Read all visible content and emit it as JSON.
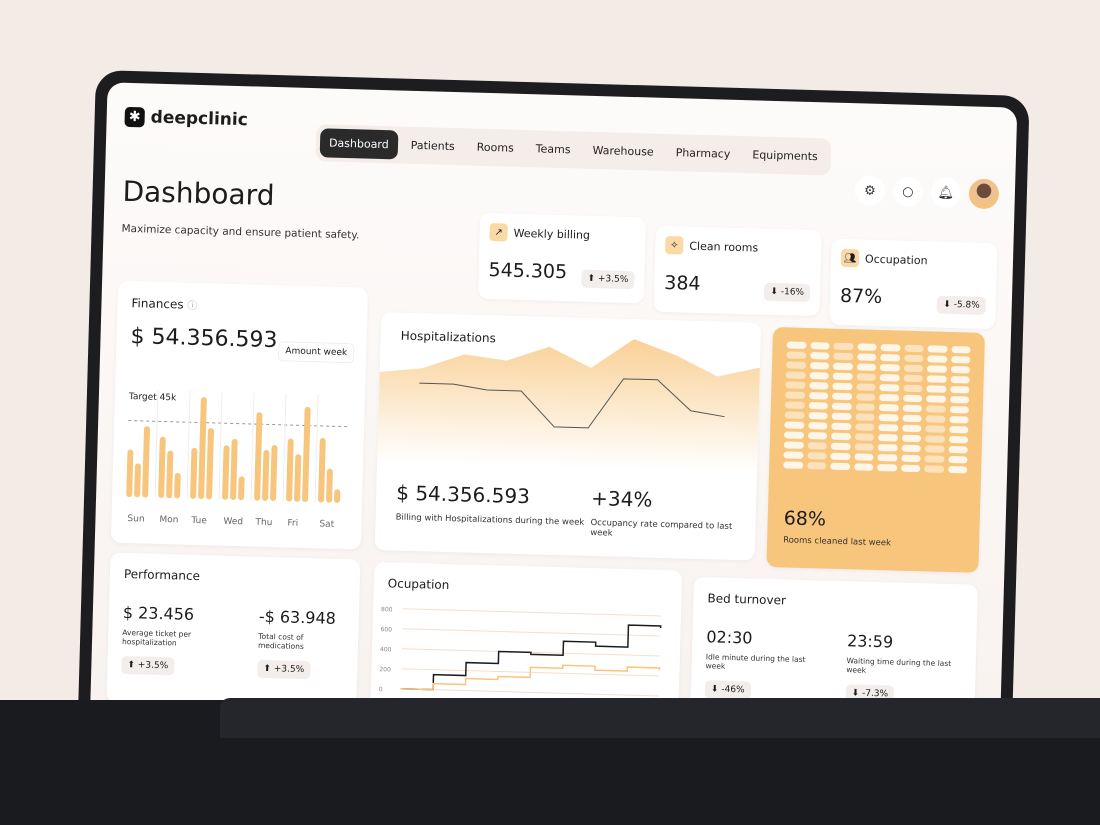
{
  "brand": {
    "name": "deepclinic"
  },
  "nav": [
    "Dashboard",
    "Patients",
    "Rooms",
    "Teams",
    "Warehouse",
    "Pharmacy",
    "Equipments"
  ],
  "header": {
    "title": "Dashboard",
    "subtitle": "Maximize capacity and ensure patient safety."
  },
  "icons": [
    "settings-icon",
    "chat-icon",
    "bell-icon"
  ],
  "kpis": [
    {
      "label": "Weekly billing",
      "value": "545.305",
      "change": "+3.5%",
      "dir": "up",
      "icon": "trend-up-icon"
    },
    {
      "label": "Clean rooms",
      "value": "384",
      "change": "-16%",
      "dir": "down",
      "icon": "broom-icon"
    },
    {
      "label": "Occupation",
      "value": "87%",
      "change": "-5.8%",
      "dir": "down",
      "icon": "users-icon"
    }
  ],
  "finances": {
    "title": "Finances",
    "amount": "$ 54.356.593",
    "filter": "Amount week",
    "target_label": "Target 45k"
  },
  "hosp": {
    "title": "Hospitalizations",
    "amount": "$ 54.356.593",
    "amount_caption": "Billing with Hospitalizations during the week",
    "rate": "+34%",
    "rate_caption": "Occupancy rate compared to last week"
  },
  "rooms": {
    "value": "68%",
    "caption": "Rooms cleaned last week"
  },
  "performance": {
    "title": "Performance",
    "a_value": "$ 23.456",
    "a_caption": "Average ticket per hospitalization",
    "a_change": "+3.5%",
    "b_value": "-$ 63.948",
    "b_caption": "Total cost of medications",
    "b_change": "+3.5%"
  },
  "ocupation": {
    "title": "Ocupation"
  },
  "bed": {
    "title": "Bed turnover",
    "a_value": "02:30",
    "a_caption": "Idle minute during the last week",
    "a_change": "-46%",
    "b_value": "23:59",
    "b_caption": "Waiting time during the last week",
    "b_change": "-7.3%"
  },
  "colors": {
    "accent": "#f8c57c",
    "dark": "#2a2a2a"
  },
  "chart_data": [
    {
      "type": "bar",
      "categories": [
        "Sun",
        "Mon",
        "Tue",
        "Wed",
        "Thu",
        "Fri",
        "Sat"
      ],
      "series": [
        {
          "values": [
            28,
            36,
            30,
            32,
            52,
            37,
            38
          ]
        },
        {
          "values": [
            20,
            28,
            60,
            36,
            30,
            28,
            20
          ]
        },
        {
          "values": [
            42,
            15,
            42,
            14,
            33,
            56,
            8
          ]
        }
      ],
      "target": 45
    },
    {
      "type": "area",
      "values": [
        60,
        55,
        40,
        45,
        30,
        50,
        20,
        35,
        55,
        45
      ]
    },
    {
      "type": "line",
      "values": [
        30,
        30,
        35,
        35,
        70,
        70,
        20,
        20,
        50,
        55
      ]
    },
    {
      "type": "heatmap",
      "rooms_cleaned_fraction": 0.68
    },
    {
      "type": "line",
      "ylim": [
        0,
        800
      ],
      "yticks": [
        "800",
        "600",
        "400",
        "200",
        "0"
      ],
      "series": [
        {
          "color": "#1c1c1c",
          "values": [
            0,
            150,
            280,
            400,
            380,
            520,
            480,
            700,
            680
          ]
        },
        {
          "color": "#f8c57c",
          "values": [
            0,
            60,
            120,
            150,
            250,
            280,
            240,
            280,
            260
          ]
        }
      ]
    }
  ]
}
